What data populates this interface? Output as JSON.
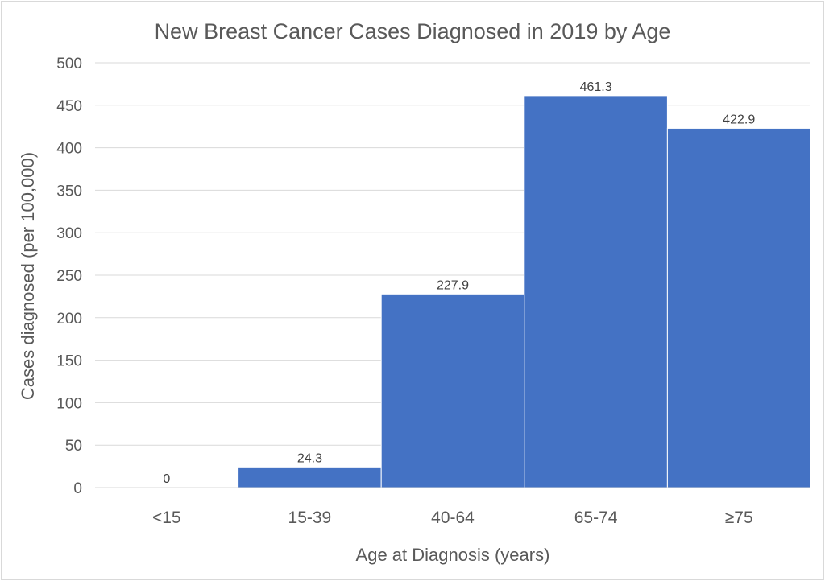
{
  "chart_data": {
    "type": "bar",
    "title": "New Breast Cancer Cases Diagnosed in 2019 by Age",
    "xlabel": "Age at Diagnosis (years)",
    "ylabel": "Cases diagnosed (per 100,000)",
    "categories": [
      "<15",
      "15-39",
      "40-64",
      "65-74",
      "≥75"
    ],
    "values": [
      0,
      24.3,
      227.9,
      461.3,
      422.9
    ],
    "data_labels": [
      "0",
      "24.3",
      "227.9",
      "461.3",
      "422.9"
    ],
    "ylim": [
      0,
      500
    ],
    "yticks": [
      0,
      50,
      100,
      150,
      200,
      250,
      300,
      350,
      400,
      450,
      500
    ],
    "grid": true,
    "legend": "none",
    "bar_color": "#4472C4",
    "gap_width": 0
  }
}
